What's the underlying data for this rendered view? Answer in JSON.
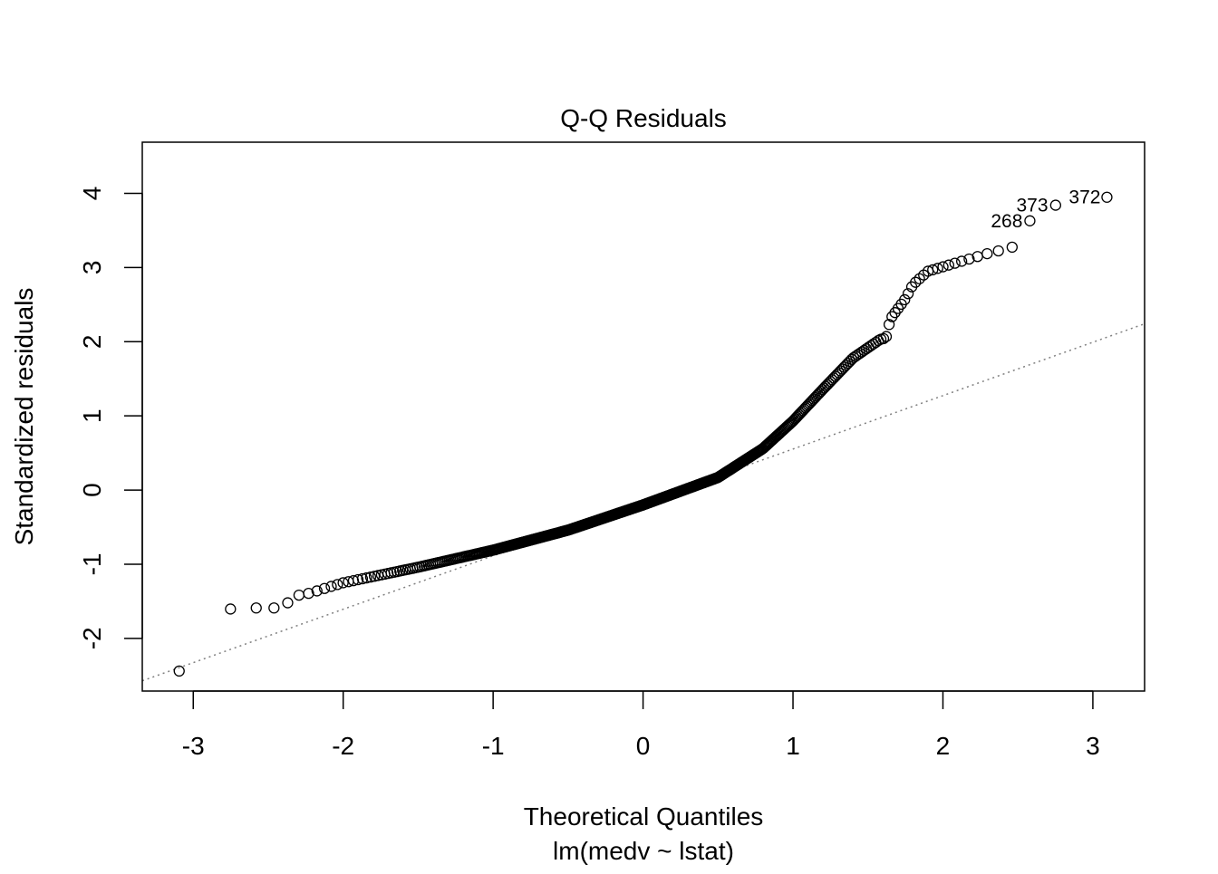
{
  "chart_data": {
    "type": "scatter",
    "title": "Q-Q Residuals",
    "xlabel": "Theoretical Quantiles",
    "subtitle": "lm(medv ~ lstat)",
    "ylabel": "Standardized residuals",
    "xlim": [
      -3.34,
      3.345
    ],
    "ylim": [
      -2.71,
      4.69
    ],
    "xticks": [
      -3,
      -2,
      -1,
      0,
      1,
      2,
      3
    ],
    "yticks": [
      -2,
      -1,
      0,
      1,
      2,
      3,
      4
    ],
    "grid": false,
    "n_points": 506,
    "residual_curve_knots": [
      [
        -3.09,
        -2.44
      ],
      [
        -2.75,
        -1.6
      ],
      [
        -2.58,
        -1.59
      ],
      [
        -2.46,
        -1.59
      ],
      [
        -2.37,
        -1.52
      ],
      [
        -2.29,
        -1.41
      ],
      [
        -2.22,
        -1.39
      ],
      [
        -2.13,
        -1.33
      ],
      [
        -2.0,
        -1.25
      ],
      [
        -1.5,
        -1.04
      ],
      [
        -1.0,
        -0.81
      ],
      [
        -0.5,
        -0.54
      ],
      [
        0.0,
        -0.2
      ],
      [
        0.5,
        0.17
      ],
      [
        0.8,
        0.56
      ],
      [
        1.0,
        0.93
      ],
      [
        1.2,
        1.36
      ],
      [
        1.4,
        1.78
      ],
      [
        1.58,
        2.03
      ],
      [
        1.62,
        2.05
      ],
      [
        1.65,
        2.31
      ],
      [
        1.75,
        2.58
      ],
      [
        1.8,
        2.77
      ],
      [
        1.9,
        2.95
      ],
      [
        2.1,
        3.07
      ],
      [
        2.3,
        3.19
      ],
      [
        2.46,
        3.27
      ],
      [
        2.58,
        3.63
      ],
      [
        2.75,
        3.84
      ],
      [
        3.1,
        3.95
      ]
    ],
    "labeled_points": [
      {
        "label": "268",
        "x": 2.58,
        "y": 3.63
      },
      {
        "label": "373",
        "x": 2.75,
        "y": 3.84
      },
      {
        "label": "372",
        "x": 3.1,
        "y": 3.95
      }
    ],
    "reference_line": {
      "intercept": -0.167,
      "slope": 0.72,
      "style": "dotted",
      "color": "#808080"
    }
  }
}
